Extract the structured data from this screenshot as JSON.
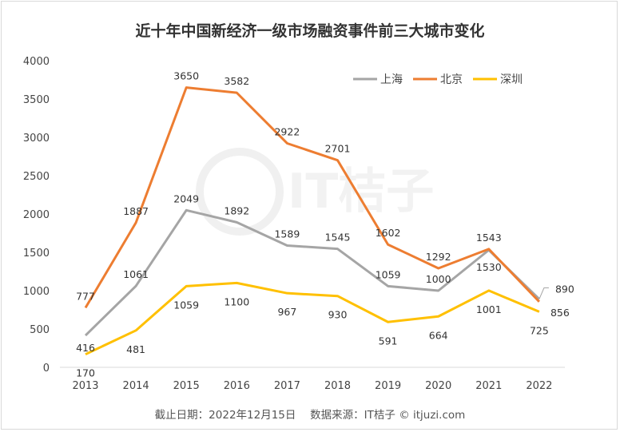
{
  "chart_data": {
    "type": "line",
    "title": "近十年中国新经济一级市场融资事件前三大城市变化",
    "footer": "截止日期：2022年12月15日　 数据来源：IT桔子 © itjuzi.com",
    "watermark": "IT桔子 ITJUZI.COM",
    "x": [
      "2013",
      "2014",
      "2015",
      "2016",
      "2017",
      "2018",
      "2019",
      "2020",
      "2021",
      "2022"
    ],
    "ylim": [
      0,
      4000
    ],
    "yticks": [
      0,
      500,
      1000,
      1500,
      2000,
      2500,
      3000,
      3500,
      4000
    ],
    "grid": false,
    "legend_position": "top-right",
    "series": [
      {
        "name": "上海",
        "color": "#A5A5A5",
        "values": [
          416,
          1061,
          2049,
          1892,
          1589,
          1545,
          1059,
          1000,
          1530,
          890
        ]
      },
      {
        "name": "北京",
        "color": "#ED7D31",
        "values": [
          777,
          1887,
          3650,
          3582,
          2922,
          2701,
          1602,
          1292,
          1543,
          856
        ]
      },
      {
        "name": "深圳",
        "color": "#FFC000",
        "values": [
          170,
          481,
          1059,
          1100,
          967,
          930,
          591,
          664,
          1001,
          725
        ]
      }
    ]
  }
}
